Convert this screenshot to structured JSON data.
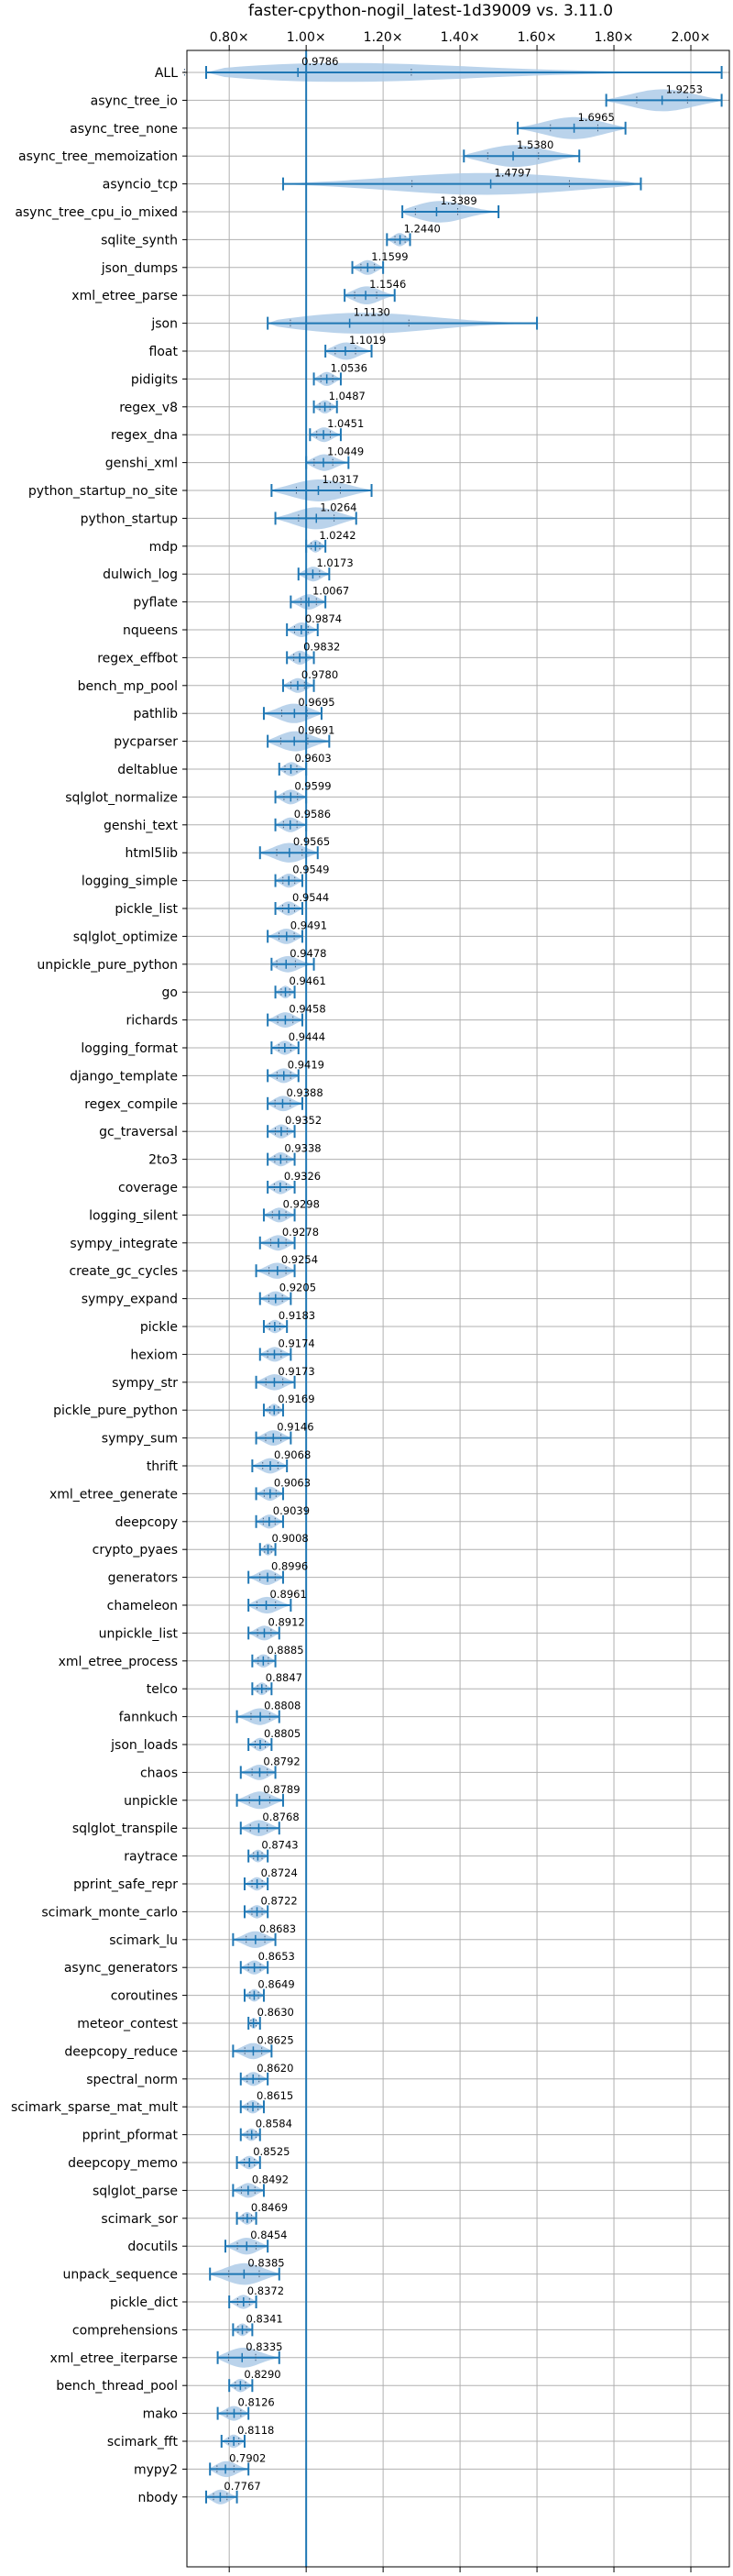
{
  "chart_data": {
    "type": "violin",
    "title": "faster-cpython-nogil_latest-1d39009 vs. 3.11.0",
    "xlabel": "",
    "ylabel": "",
    "xlim": [
      0.69,
      2.1
    ],
    "x_ticks": [
      0.8,
      1.0,
      1.2,
      1.4,
      1.6,
      1.8,
      2.0
    ],
    "x_tick_labels": [
      "0.80×",
      "1.00×",
      "1.20×",
      "1.40×",
      "1.60×",
      "1.80×",
      "2.00×"
    ],
    "reference_line": 1.0,
    "grid": true,
    "colors": {
      "violin": "#aecbe8",
      "whisker": "#1f77b4",
      "refline": "#1f77b4",
      "grid": "#b0b0b0"
    },
    "benchmarks": [
      {
        "name": "ALL",
        "value": 0.9786,
        "min": 0.74,
        "max": 2.08,
        "label": "0.9786"
      },
      {
        "name": "async_tree_io",
        "value": 1.9253,
        "min": 1.78,
        "max": 2.08,
        "label": "1.9253"
      },
      {
        "name": "async_tree_none",
        "value": 1.6965,
        "min": 1.55,
        "max": 1.83,
        "label": "1.6965"
      },
      {
        "name": "async_tree_memoization",
        "value": 1.538,
        "min": 1.41,
        "max": 1.71,
        "label": "1.5380"
      },
      {
        "name": "asyncio_tcp",
        "value": 1.4797,
        "min": 0.94,
        "max": 1.87,
        "label": "1.4797"
      },
      {
        "name": "async_tree_cpu_io_mixed",
        "value": 1.3389,
        "min": 1.25,
        "max": 1.5,
        "label": "1.3389"
      },
      {
        "name": "sqlite_synth",
        "value": 1.244,
        "min": 1.21,
        "max": 1.27,
        "label": "1.2440"
      },
      {
        "name": "json_dumps",
        "value": 1.1599,
        "min": 1.12,
        "max": 1.2,
        "label": "1.1599"
      },
      {
        "name": "xml_etree_parse",
        "value": 1.1546,
        "min": 1.1,
        "max": 1.23,
        "label": "1.1546"
      },
      {
        "name": "json",
        "value": 1.113,
        "min": 0.9,
        "max": 1.6,
        "label": "1.1130"
      },
      {
        "name": "float",
        "value": 1.1019,
        "min": 1.05,
        "max": 1.17,
        "label": "1.1019"
      },
      {
        "name": "pidigits",
        "value": 1.0536,
        "min": 1.02,
        "max": 1.09,
        "label": "1.0536"
      },
      {
        "name": "regex_v8",
        "value": 1.0487,
        "min": 1.02,
        "max": 1.08,
        "label": "1.0487"
      },
      {
        "name": "regex_dna",
        "value": 1.0451,
        "min": 1.01,
        "max": 1.09,
        "label": "1.0451"
      },
      {
        "name": "genshi_xml",
        "value": 1.0449,
        "min": 1.0,
        "max": 1.11,
        "label": "1.0449"
      },
      {
        "name": "python_startup_no_site",
        "value": 1.0317,
        "min": 0.91,
        "max": 1.17,
        "label": "1.0317"
      },
      {
        "name": "python_startup",
        "value": 1.0264,
        "min": 0.92,
        "max": 1.13,
        "label": "1.0264"
      },
      {
        "name": "mdp",
        "value": 1.0242,
        "min": 1.0,
        "max": 1.05,
        "label": "1.0242"
      },
      {
        "name": "dulwich_log",
        "value": 1.0173,
        "min": 0.98,
        "max": 1.06,
        "label": "1.0173"
      },
      {
        "name": "pyflate",
        "value": 1.0067,
        "min": 0.96,
        "max": 1.05,
        "label": "1.0067"
      },
      {
        "name": "nqueens",
        "value": 0.9874,
        "min": 0.95,
        "max": 1.03,
        "label": "0.9874"
      },
      {
        "name": "regex_effbot",
        "value": 0.9832,
        "min": 0.95,
        "max": 1.02,
        "label": "0.9832"
      },
      {
        "name": "bench_mp_pool",
        "value": 0.978,
        "min": 0.94,
        "max": 1.02,
        "label": "0.9780"
      },
      {
        "name": "pathlib",
        "value": 0.9695,
        "min": 0.89,
        "max": 1.04,
        "label": "0.9695"
      },
      {
        "name": "pycparser",
        "value": 0.9691,
        "min": 0.9,
        "max": 1.06,
        "label": "0.9691"
      },
      {
        "name": "deltablue",
        "value": 0.9603,
        "min": 0.93,
        "max": 1.0,
        "label": "0.9603"
      },
      {
        "name": "sqlglot_normalize",
        "value": 0.9599,
        "min": 0.92,
        "max": 1.0,
        "label": "0.9599"
      },
      {
        "name": "genshi_text",
        "value": 0.9586,
        "min": 0.92,
        "max": 1.0,
        "label": "0.9586"
      },
      {
        "name": "html5lib",
        "value": 0.9565,
        "min": 0.88,
        "max": 1.03,
        "label": "0.9565"
      },
      {
        "name": "logging_simple",
        "value": 0.9549,
        "min": 0.92,
        "max": 0.99,
        "label": "0.9549"
      },
      {
        "name": "pickle_list",
        "value": 0.9544,
        "min": 0.92,
        "max": 0.99,
        "label": "0.9544"
      },
      {
        "name": "sqlglot_optimize",
        "value": 0.9491,
        "min": 0.9,
        "max": 0.99,
        "label": "0.9491"
      },
      {
        "name": "unpickle_pure_python",
        "value": 0.9478,
        "min": 0.91,
        "max": 1.02,
        "label": "0.9478"
      },
      {
        "name": "go",
        "value": 0.9461,
        "min": 0.92,
        "max": 0.97,
        "label": "0.9461"
      },
      {
        "name": "richards",
        "value": 0.9458,
        "min": 0.9,
        "max": 0.99,
        "label": "0.9458"
      },
      {
        "name": "logging_format",
        "value": 0.9444,
        "min": 0.91,
        "max": 0.98,
        "label": "0.9444"
      },
      {
        "name": "django_template",
        "value": 0.9419,
        "min": 0.9,
        "max": 0.98,
        "label": "0.9419"
      },
      {
        "name": "regex_compile",
        "value": 0.9388,
        "min": 0.9,
        "max": 0.99,
        "label": "0.9388"
      },
      {
        "name": "gc_traversal",
        "value": 0.9352,
        "min": 0.9,
        "max": 0.97,
        "label": "0.9352"
      },
      {
        "name": "2to3",
        "value": 0.9338,
        "min": 0.9,
        "max": 0.97,
        "label": "0.9338"
      },
      {
        "name": "coverage",
        "value": 0.9326,
        "min": 0.9,
        "max": 0.97,
        "label": "0.9326"
      },
      {
        "name": "logging_silent",
        "value": 0.9298,
        "min": 0.89,
        "max": 0.97,
        "label": "0.9298"
      },
      {
        "name": "sympy_integrate",
        "value": 0.9278,
        "min": 0.88,
        "max": 0.97,
        "label": "0.9278"
      },
      {
        "name": "create_gc_cycles",
        "value": 0.9254,
        "min": 0.87,
        "max": 0.97,
        "label": "0.9254"
      },
      {
        "name": "sympy_expand",
        "value": 0.9205,
        "min": 0.88,
        "max": 0.96,
        "label": "0.9205"
      },
      {
        "name": "pickle",
        "value": 0.9183,
        "min": 0.89,
        "max": 0.95,
        "label": "0.9183"
      },
      {
        "name": "hexiom",
        "value": 0.9174,
        "min": 0.88,
        "max": 0.96,
        "label": "0.9174"
      },
      {
        "name": "sympy_str",
        "value": 0.9173,
        "min": 0.87,
        "max": 0.97,
        "label": "0.9173"
      },
      {
        "name": "pickle_pure_python",
        "value": 0.9169,
        "min": 0.89,
        "max": 0.94,
        "label": "0.9169"
      },
      {
        "name": "sympy_sum",
        "value": 0.9146,
        "min": 0.87,
        "max": 0.96,
        "label": "0.9146"
      },
      {
        "name": "thrift",
        "value": 0.9068,
        "min": 0.86,
        "max": 0.95,
        "label": "0.9068"
      },
      {
        "name": "xml_etree_generate",
        "value": 0.9063,
        "min": 0.87,
        "max": 0.94,
        "label": "0.9063"
      },
      {
        "name": "deepcopy",
        "value": 0.9039,
        "min": 0.87,
        "max": 0.94,
        "label": "0.9039"
      },
      {
        "name": "crypto_pyaes",
        "value": 0.9008,
        "min": 0.88,
        "max": 0.92,
        "label": "0.9008"
      },
      {
        "name": "generators",
        "value": 0.8996,
        "min": 0.85,
        "max": 0.94,
        "label": "0.8996"
      },
      {
        "name": "chameleon",
        "value": 0.8961,
        "min": 0.85,
        "max": 0.96,
        "label": "0.8961"
      },
      {
        "name": "unpickle_list",
        "value": 0.8912,
        "min": 0.85,
        "max": 0.93,
        "label": "0.8912"
      },
      {
        "name": "xml_etree_process",
        "value": 0.8885,
        "min": 0.86,
        "max": 0.92,
        "label": "0.8885"
      },
      {
        "name": "telco",
        "value": 0.8847,
        "min": 0.86,
        "max": 0.91,
        "label": "0.8847"
      },
      {
        "name": "fannkuch",
        "value": 0.8808,
        "min": 0.82,
        "max": 0.93,
        "label": "0.8808"
      },
      {
        "name": "json_loads",
        "value": 0.8805,
        "min": 0.85,
        "max": 0.91,
        "label": "0.8805"
      },
      {
        "name": "chaos",
        "value": 0.8792,
        "min": 0.83,
        "max": 0.92,
        "label": "0.8792"
      },
      {
        "name": "unpickle",
        "value": 0.8789,
        "min": 0.82,
        "max": 0.94,
        "label": "0.8789"
      },
      {
        "name": "sqlglot_transpile",
        "value": 0.8768,
        "min": 0.83,
        "max": 0.93,
        "label": "0.8768"
      },
      {
        "name": "raytrace",
        "value": 0.8743,
        "min": 0.85,
        "max": 0.9,
        "label": "0.8743"
      },
      {
        "name": "pprint_safe_repr",
        "value": 0.8724,
        "min": 0.84,
        "max": 0.9,
        "label": "0.8724"
      },
      {
        "name": "scimark_monte_carlo",
        "value": 0.8722,
        "min": 0.84,
        "max": 0.9,
        "label": "0.8722"
      },
      {
        "name": "scimark_lu",
        "value": 0.8683,
        "min": 0.81,
        "max": 0.92,
        "label": "0.8683"
      },
      {
        "name": "async_generators",
        "value": 0.8653,
        "min": 0.83,
        "max": 0.9,
        "label": "0.8653"
      },
      {
        "name": "coroutines",
        "value": 0.8649,
        "min": 0.84,
        "max": 0.89,
        "label": "0.8649"
      },
      {
        "name": "meteor_contest",
        "value": 0.863,
        "min": 0.85,
        "max": 0.88,
        "label": "0.8630"
      },
      {
        "name": "deepcopy_reduce",
        "value": 0.8625,
        "min": 0.81,
        "max": 0.91,
        "label": "0.8625"
      },
      {
        "name": "spectral_norm",
        "value": 0.862,
        "min": 0.83,
        "max": 0.9,
        "label": "0.8620"
      },
      {
        "name": "scimark_sparse_mat_mult",
        "value": 0.8615,
        "min": 0.83,
        "max": 0.89,
        "label": "0.8615"
      },
      {
        "name": "pprint_pformat",
        "value": 0.8584,
        "min": 0.83,
        "max": 0.88,
        "label": "0.8584"
      },
      {
        "name": "deepcopy_memo",
        "value": 0.8525,
        "min": 0.82,
        "max": 0.88,
        "label": "0.8525"
      },
      {
        "name": "sqlglot_parse",
        "value": 0.8492,
        "min": 0.81,
        "max": 0.89,
        "label": "0.8492"
      },
      {
        "name": "scimark_sor",
        "value": 0.8469,
        "min": 0.82,
        "max": 0.87,
        "label": "0.8469"
      },
      {
        "name": "docutils",
        "value": 0.8454,
        "min": 0.79,
        "max": 0.9,
        "label": "0.8454"
      },
      {
        "name": "unpack_sequence",
        "value": 0.8385,
        "min": 0.75,
        "max": 0.93,
        "label": "0.8385"
      },
      {
        "name": "pickle_dict",
        "value": 0.8372,
        "min": 0.8,
        "max": 0.87,
        "label": "0.8372"
      },
      {
        "name": "comprehensions",
        "value": 0.8341,
        "min": 0.81,
        "max": 0.86,
        "label": "0.8341"
      },
      {
        "name": "xml_etree_iterparse",
        "value": 0.8335,
        "min": 0.77,
        "max": 0.93,
        "label": "0.8335"
      },
      {
        "name": "bench_thread_pool",
        "value": 0.829,
        "min": 0.8,
        "max": 0.86,
        "label": "0.8290"
      },
      {
        "name": "mako",
        "value": 0.8126,
        "min": 0.77,
        "max": 0.85,
        "label": "0.8126"
      },
      {
        "name": "scimark_fft",
        "value": 0.8118,
        "min": 0.78,
        "max": 0.84,
        "label": "0.8118"
      },
      {
        "name": "mypy2",
        "value": 0.7902,
        "min": 0.75,
        "max": 0.85,
        "label": "0.7902"
      },
      {
        "name": "nbody",
        "value": 0.7767,
        "min": 0.74,
        "max": 0.82,
        "label": "0.7767"
      }
    ]
  }
}
